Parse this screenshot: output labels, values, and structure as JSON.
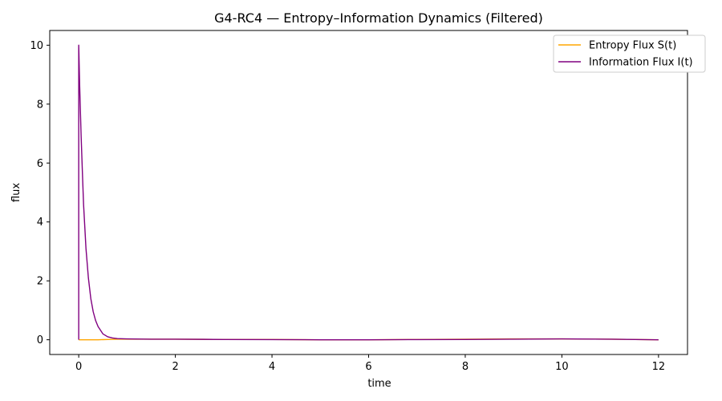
{
  "chart_data": {
    "type": "line",
    "title": "G4-RC4 — Entropy–Information Dynamics (Filtered)",
    "xlabel": "time",
    "ylabel": "flux",
    "xlim": [
      -0.6,
      12.6
    ],
    "ylim": [
      -0.5,
      10.5
    ],
    "xticks": [
      0,
      2,
      4,
      6,
      8,
      10,
      12
    ],
    "yticks": [
      0,
      2,
      4,
      6,
      8,
      10
    ],
    "xtick_labels": [
      "0",
      "2",
      "4",
      "6",
      "8",
      "10",
      "12"
    ],
    "ytick_labels": [
      "0",
      "2",
      "4",
      "6",
      "8",
      "10"
    ],
    "grid": false,
    "legend_position": "top-right",
    "series": [
      {
        "name": "Entropy Flux S(t)",
        "color": "#ffa500",
        "x": [
          0,
          0.2,
          0.4,
          0.6,
          0.8,
          1,
          2,
          3,
          4,
          5,
          6,
          7,
          8,
          9,
          10,
          11,
          12
        ],
        "y": [
          0,
          0,
          0,
          0.01,
          0.02,
          0.02,
          0.02,
          0.01,
          0.01,
          0,
          0,
          0.01,
          0.02,
          0.03,
          0.03,
          0.02,
          0
        ]
      },
      {
        "name": "Information Flux I(t)",
        "color": "#800080",
        "x": [
          0,
          0,
          0.02,
          0.05,
          0.08,
          0.1,
          0.15,
          0.2,
          0.25,
          0.3,
          0.35,
          0.4,
          0.5,
          0.6,
          0.7,
          0.8,
          1,
          1.5,
          2,
          3,
          4,
          5,
          6,
          7,
          8,
          9,
          10,
          11,
          12
        ],
        "y": [
          0,
          10,
          8.6,
          6.9,
          5.5,
          4.6,
          3.1,
          2.1,
          1.4,
          0.95,
          0.65,
          0.45,
          0.2,
          0.1,
          0.06,
          0.04,
          0.03,
          0.02,
          0.02,
          0.01,
          0.005,
          0,
          0,
          0.005,
          0.01,
          0.02,
          0.03,
          0.02,
          0
        ]
      }
    ]
  }
}
